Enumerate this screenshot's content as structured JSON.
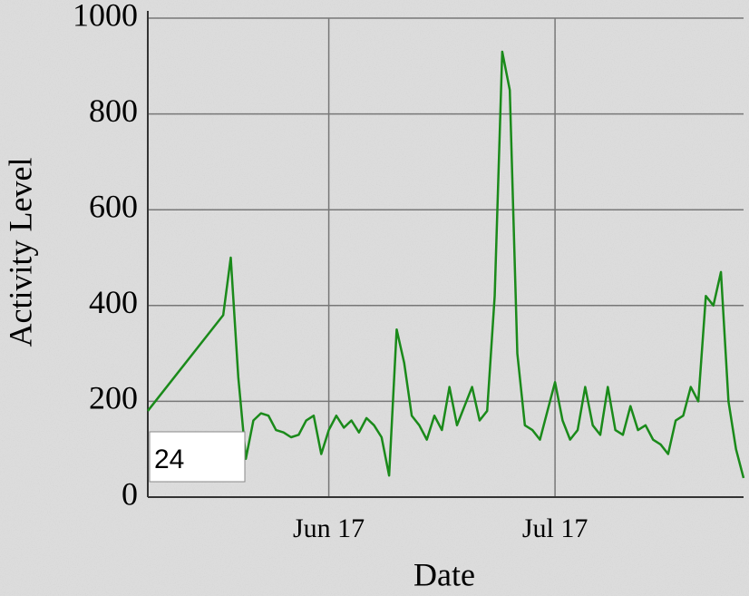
{
  "chart_data": {
    "type": "line",
    "xlabel": "Date",
    "ylabel": "Activity Level",
    "annotation": "24",
    "x": [
      "May 24",
      "Jun 3",
      "Jun 4",
      "Jun 5",
      "Jun 6",
      "Jun 7",
      "Jun 8",
      "Jun 9",
      "Jun 10",
      "Jun 11",
      "Jun 12",
      "Jun 13",
      "Jun 14",
      "Jun 15",
      "Jun 16",
      "Jun 17",
      "Jun 18",
      "Jun 19",
      "Jun 20",
      "Jun 21",
      "Jun 22",
      "Jun 23",
      "Jun 24",
      "Jun 25",
      "Jun 26",
      "Jun 27",
      "Jun 28",
      "Jun 29",
      "Jun 30",
      "Jul 1",
      "Jul 2",
      "Jul 3",
      "Jul 4",
      "Jul 5",
      "Jul 6",
      "Jul 7",
      "Jul 8",
      "Jul 9",
      "Jul 10",
      "Jul 11",
      "Jul 12",
      "Jul 13",
      "Jul 14",
      "Jul 15",
      "Jul 16",
      "Jul 17",
      "Jul 18",
      "Jul 19",
      "Jul 20",
      "Jul 21",
      "Jul 22",
      "Jul 23",
      "Jul 24",
      "Jul 25",
      "Jul 26",
      "Jul 27",
      "Jul 28",
      "Jul 29",
      "Jul 30",
      "Jul 31",
      "Aug 1",
      "Aug 2",
      "Aug 3",
      "Aug 4",
      "Aug 5",
      "Aug 6",
      "Aug 7",
      "Aug 8",
      "Aug 9",
      "Aug 10",
      "Aug 11"
    ],
    "values": [
      180,
      380,
      500,
      250,
      80,
      160,
      175,
      170,
      140,
      135,
      125,
      130,
      160,
      170,
      90,
      140,
      170,
      145,
      160,
      135,
      165,
      150,
      125,
      45,
      350,
      280,
      170,
      150,
      120,
      170,
      140,
      230,
      150,
      190,
      230,
      160,
      180,
      420,
      930,
      850,
      300,
      150,
      140,
      120,
      180,
      240,
      160,
      120,
      140,
      230,
      150,
      130,
      230,
      140,
      130,
      190,
      140,
      150,
      120,
      110,
      90,
      160,
      170,
      230,
      200,
      420,
      400,
      470,
      200,
      100,
      40
    ],
    "color": "#1a8a1a",
    "xlim": [
      "May 24",
      "Aug 11"
    ],
    "xticks": [
      "Jun 17",
      "Jul 17"
    ],
    "ylim": [
      0,
      1000
    ],
    "yticks": [
      0,
      200,
      400,
      600,
      800,
      1000
    ],
    "grid": true
  }
}
